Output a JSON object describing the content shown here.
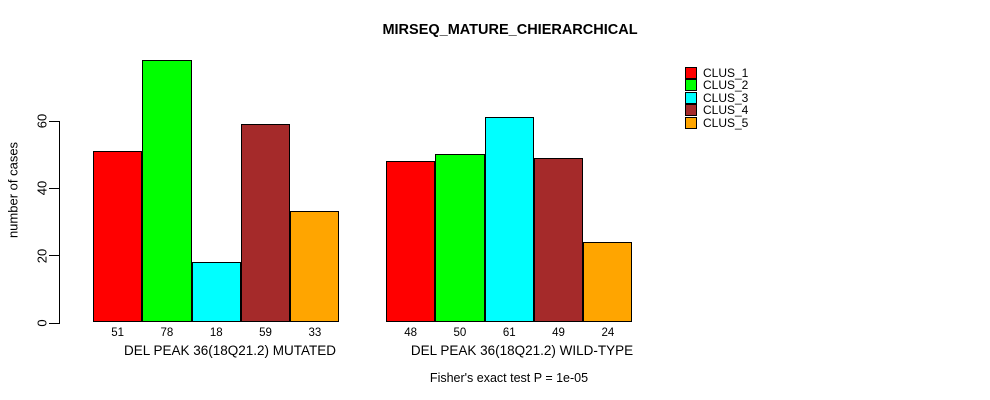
{
  "chart_data": {
    "type": "bar",
    "title": "MIRSEQ_MATURE_CHIERARCHICAL",
    "ylabel": "number of cases",
    "xlabel": "",
    "yticks": [
      0,
      20,
      40,
      60
    ],
    "ylim": [
      0,
      78
    ],
    "grid": false,
    "legend_position": "right",
    "bar_value_labels_shown": true,
    "series": [
      {
        "name": "CLUS_1",
        "color": "#FF0000"
      },
      {
        "name": "CLUS_2",
        "color": "#00FF00"
      },
      {
        "name": "CLUS_3",
        "color": "#00FFFF"
      },
      {
        "name": "CLUS_4",
        "color": "#A52A2A"
      },
      {
        "name": "CLUS_5",
        "color": "#FFA500"
      }
    ],
    "groups": [
      {
        "label": "DEL PEAK 36(18Q21.2) MUTATED",
        "values": [
          51,
          78,
          18,
          59,
          33
        ]
      },
      {
        "label": "DEL PEAK 36(18Q21.2) WILD-TYPE",
        "values": [
          48,
          50,
          61,
          49,
          24
        ]
      }
    ],
    "footnote": "Fisher's exact test P = 1e-05",
    "colors": {
      "background": "#FFFFFF",
      "axis": "#000000",
      "text": "#000000"
    }
  }
}
